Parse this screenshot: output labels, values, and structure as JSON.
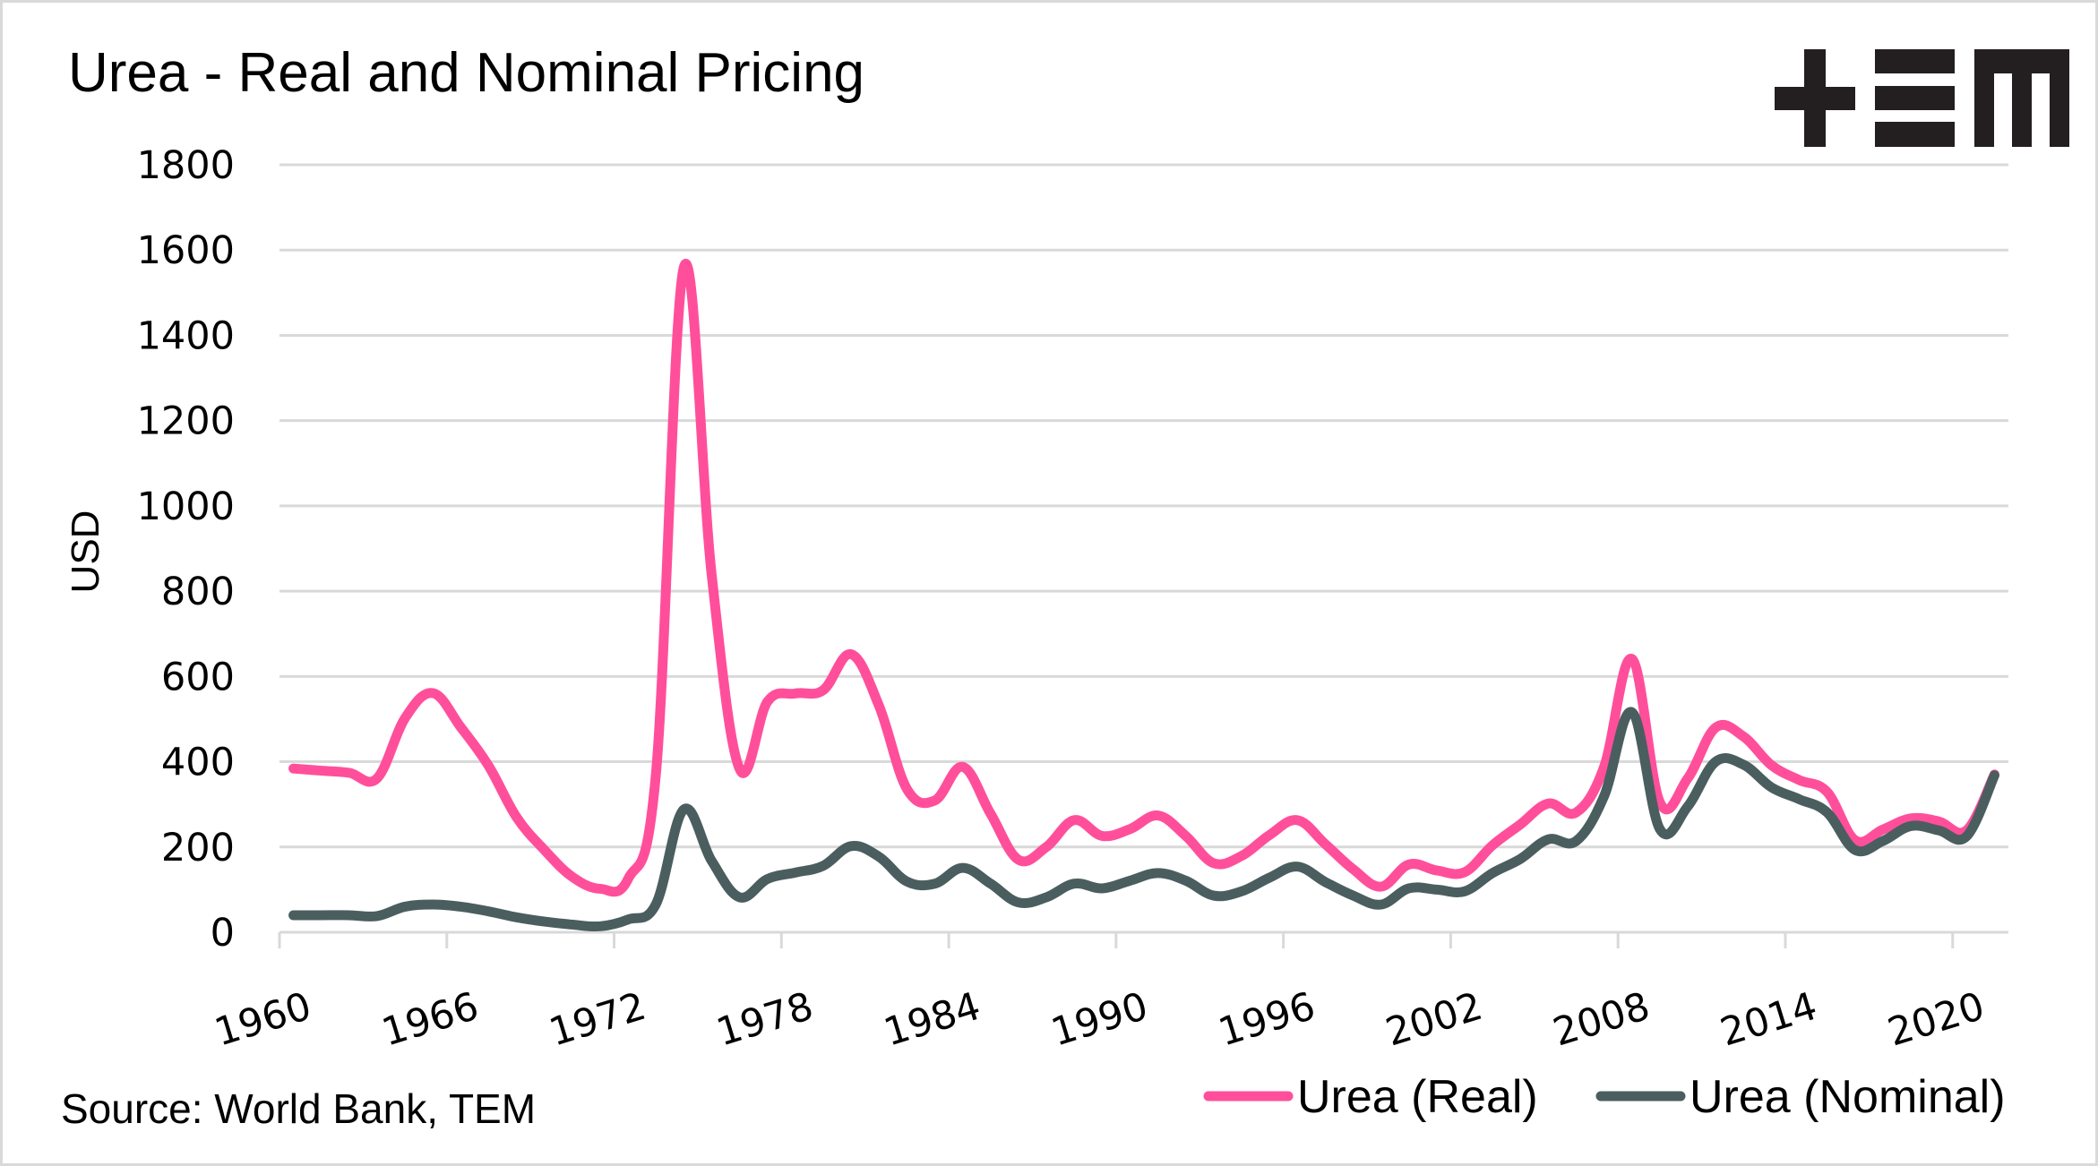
{
  "logo": {
    "name": "TEM",
    "icon": "plus-equals-m-logo-icon",
    "color": "#231f20"
  },
  "chart_data": {
    "type": "line",
    "title": "Urea - Real and Nominal Pricing",
    "xlabel": "",
    "ylabel": "USD",
    "source": "Source: World Bank, TEM",
    "ylim": [
      0,
      1800
    ],
    "yticks": [
      "0",
      "200",
      "400",
      "600",
      "800",
      "1000",
      "1200",
      "1400",
      "1600",
      "1800"
    ],
    "xticks": [
      "1960",
      "1966",
      "1972",
      "1978",
      "1984",
      "1990",
      "1996",
      "2002",
      "2008",
      "2014",
      "2020"
    ],
    "grid": true,
    "legend_position": "bottom-right",
    "x": [
      1960,
      1961,
      1962,
      1963,
      1964,
      1965,
      1966,
      1967,
      1968,
      1969,
      1970,
      1971,
      1972,
      1973,
      1974,
      1975,
      1976,
      1977,
      1978,
      1979,
      1980,
      1981,
      1982,
      1983,
      1984,
      1985,
      1986,
      1987,
      1988,
      1989,
      1990,
      1991,
      1992,
      1993,
      1994,
      1995,
      1996,
      1997,
      1998,
      1999,
      2000,
      2001,
      2002,
      2003,
      2004,
      2005,
      2006,
      2007,
      2008,
      2009,
      2010,
      2011,
      2012,
      2013,
      2014,
      2015,
      2016,
      2017,
      2018,
      2019,
      2020,
      2021
    ],
    "series": [
      {
        "name": "Urea (Real)",
        "color": "#ff4f9b",
        "values": [
          384,
          379,
          374,
          361,
          502,
          561,
          481,
          390,
          270,
          193,
          130,
          102,
          125,
          372,
          1560,
          837,
          383,
          541,
          560,
          568,
          652,
          531,
          336,
          309,
          388,
          278,
          170,
          200,
          263,
          226,
          242,
          274,
          226,
          162,
          179,
          228,
          263,
          207,
          148,
          107,
          159,
          145,
          141,
          204,
          253,
          302,
          281,
          388,
          641,
          305,
          361,
          480,
          459,
          392,
          357,
          329,
          216,
          241,
          267,
          260,
          239,
          370
        ]
      },
      {
        "name": "Urea (Nominal)",
        "color": "#4b5e5f",
        "values": [
          40,
          40,
          40,
          38,
          60,
          65,
          60,
          49,
          35,
          25,
          18,
          14,
          30,
          66,
          288,
          167,
          82,
          125,
          140,
          156,
          202,
          177,
          119,
          114,
          151,
          114,
          70,
          82,
          114,
          103,
          121,
          139,
          121,
          86,
          96,
          128,
          154,
          118,
          86,
          65,
          103,
          100,
          96,
          139,
          172,
          218,
          214,
          319,
          516,
          242,
          295,
          400,
          393,
          340,
          312,
          281,
          193,
          214,
          249,
          239,
          225,
          368
        ]
      }
    ]
  }
}
